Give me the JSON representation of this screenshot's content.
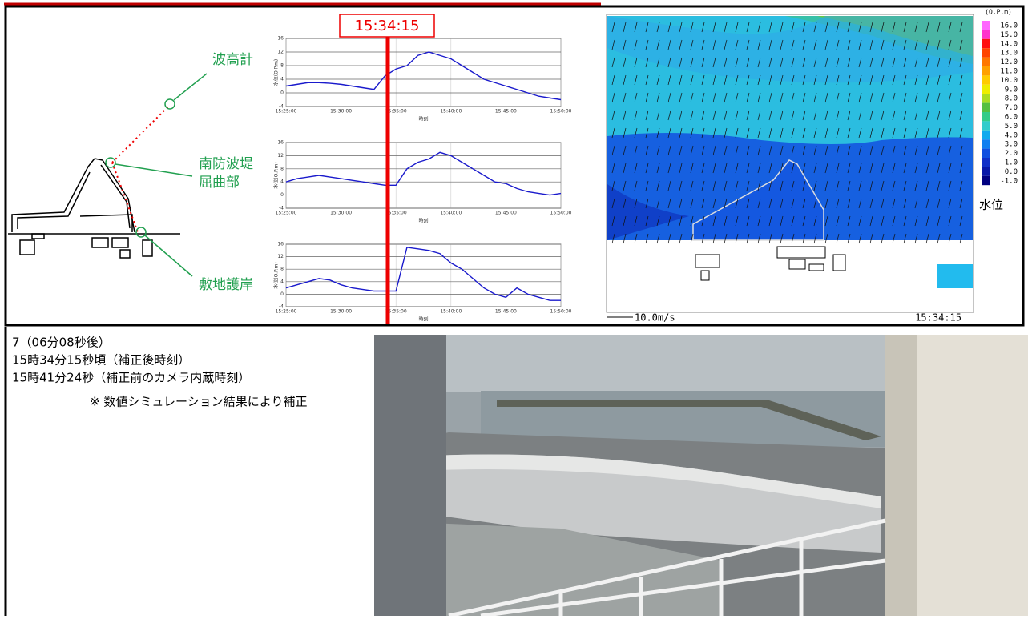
{
  "header_time": "15:34:15",
  "locations": [
    [
      "波高計"
    ],
    [
      "南防波堤",
      "屈曲部"
    ],
    [
      "敷地護岸"
    ]
  ],
  "chart_data": [
    {
      "type": "line",
      "y_label": "水位(O.P.m)",
      "x_label": "時刻",
      "x": [
        "15:25:00",
        "15:26:00",
        "15:27:00",
        "15:28:00",
        "15:29:00",
        "15:30:00",
        "15:31:00",
        "15:32:00",
        "15:33:00",
        "15:34:00",
        "15:35:00",
        "15:36:00",
        "15:37:00",
        "15:38:00",
        "15:39:00",
        "15:40:00",
        "15:41:00",
        "15:42:00",
        "15:43:00",
        "15:44:00",
        "15:45:00",
        "15:46:00",
        "15:47:00",
        "15:48:00",
        "15:49:00",
        "15:50:00"
      ],
      "values": [
        2,
        2.5,
        3,
        3,
        2.8,
        2.5,
        2,
        1.5,
        1,
        5,
        7,
        8,
        11,
        12,
        11,
        10,
        8,
        6,
        4,
        3,
        2,
        1,
        0,
        -1,
        -1.5,
        -2
      ],
      "color": "#1a1acc",
      "ylim": [
        -4,
        16
      ],
      "yticks": [
        -4,
        0,
        4,
        8,
        12,
        16
      ],
      "xlim": [
        "15:25:00",
        "15:50:00"
      ],
      "xticks": [
        "15:25:00",
        "15:30:00",
        "15:35:00",
        "15:40:00",
        "15:45:00",
        "15:50:00"
      ],
      "grid": true
    },
    {
      "type": "line",
      "y_label": "水位(O.P.m)",
      "x_label": "時刻",
      "x": [
        "15:25:00",
        "15:26:00",
        "15:27:00",
        "15:28:00",
        "15:29:00",
        "15:30:00",
        "15:31:00",
        "15:32:00",
        "15:33:00",
        "15:34:00",
        "15:35:00",
        "15:36:00",
        "15:37:00",
        "15:38:00",
        "15:39:00",
        "15:40:00",
        "15:41:00",
        "15:42:00",
        "15:43:00",
        "15:44:00",
        "15:45:00",
        "15:46:00",
        "15:47:00",
        "15:48:00",
        "15:49:00",
        "15:50:00"
      ],
      "values": [
        4,
        5,
        5.5,
        6,
        5.5,
        5,
        4.5,
        4,
        3.5,
        3,
        3,
        8,
        10,
        11,
        13,
        12,
        10,
        8,
        6,
        4,
        3.5,
        2,
        1,
        0.5,
        0,
        0.5
      ],
      "color": "#1a1acc",
      "ylim": [
        -4,
        16
      ],
      "yticks": [
        -4,
        0,
        4,
        8,
        12,
        16
      ],
      "xlim": [
        "15:25:00",
        "15:50:00"
      ],
      "xticks": [
        "15:25:00",
        "15:30:00",
        "15:35:00",
        "15:40:00",
        "15:45:00",
        "15:50:00"
      ],
      "grid": true
    },
    {
      "type": "line",
      "y_label": "水位(O.P.m)",
      "x_label": "時刻",
      "x": [
        "15:25:00",
        "15:26:00",
        "15:27:00",
        "15:28:00",
        "15:29:00",
        "15:30:00",
        "15:31:00",
        "15:32:00",
        "15:33:00",
        "15:34:00",
        "15:35:00",
        "15:36:00",
        "15:37:00",
        "15:38:00",
        "15:39:00",
        "15:40:00",
        "15:41:00",
        "15:42:00",
        "15:43:00",
        "15:44:00",
        "15:45:00",
        "15:46:00",
        "15:47:00",
        "15:48:00",
        "15:49:00",
        "15:50:00"
      ],
      "values": [
        2,
        3,
        4,
        5,
        4.5,
        3,
        2,
        1.5,
        1,
        1,
        1,
        15,
        14.5,
        14,
        13,
        10,
        8,
        5,
        2,
        0,
        -1,
        2,
        0,
        -1,
        -2,
        -2
      ],
      "color": "#1a1acc",
      "ylim": [
        -4,
        16
      ],
      "yticks": [
        -4,
        0,
        4,
        8,
        12,
        16
      ],
      "xlim": [
        "15:25:00",
        "15:50:00"
      ],
      "xticks": [
        "15:25:00",
        "15:30:00",
        "15:35:00",
        "15:40:00",
        "15:45:00",
        "15:50:00"
      ],
      "grid": true
    }
  ],
  "simulation": {
    "unit": "(O.P.m)",
    "scale_title": "水位",
    "vector_label": "10.0m/s",
    "time": "15:34:15",
    "scale": [
      {
        "value": 16,
        "label": "16.0",
        "color": "#ff66ff"
      },
      {
        "value": 15,
        "label": "15.0",
        "color": "#ff33cc"
      },
      {
        "value": 14,
        "label": "14.0",
        "color": "#ff1010"
      },
      {
        "value": 13,
        "label": "13.0",
        "color": "#ff4400"
      },
      {
        "value": 12,
        "label": "12.0",
        "color": "#ff7700"
      },
      {
        "value": 11,
        "label": "11.0",
        "color": "#ffa000"
      },
      {
        "value": 10,
        "label": "10.0",
        "color": "#ffcc00"
      },
      {
        "value": 9,
        "label": "9.0",
        "color": "#eeee00"
      },
      {
        "value": 8,
        "label": "8.0",
        "color": "#aadd22"
      },
      {
        "value": 7,
        "label": "7.0",
        "color": "#55c040"
      },
      {
        "value": 6,
        "label": "6.0",
        "color": "#33cc88"
      },
      {
        "value": 5,
        "label": "5.0",
        "color": "#33cccc"
      },
      {
        "value": 4,
        "label": "4.0",
        "color": "#11aaee"
      },
      {
        "value": 3,
        "label": "3.0",
        "color": "#1080f0"
      },
      {
        "value": 2,
        "label": "2.0",
        "color": "#1050e0"
      },
      {
        "value": 1,
        "label": "1.0",
        "color": "#1030c8"
      },
      {
        "value": 0,
        "label": "0.0",
        "color": "#0818a8"
      },
      {
        "value": -1,
        "label": "-1.0",
        "color": "#000080"
      }
    ]
  },
  "caption": [
    "7（06分08秒後）",
    "15時34分15秒頃（補正後時刻）",
    "15時41分24秒（補正前のカメラ内蔵時刻）",
    "※ 数値シミュレーション結果により補正"
  ]
}
